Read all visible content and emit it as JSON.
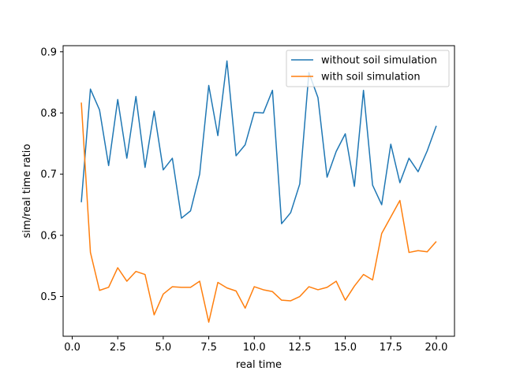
{
  "chart_data": {
    "type": "line",
    "xlabel": "real time",
    "ylabel": "sim/real time ratio",
    "xlim": [
      -0.5,
      21.0
    ],
    "ylim": [
      0.435,
      0.91
    ],
    "xticks": [
      0.0,
      2.5,
      5.0,
      7.5,
      10.0,
      12.5,
      15.0,
      17.5,
      20.0
    ],
    "xtick_labels": [
      "0.0",
      "2.5",
      "5.0",
      "7.5",
      "10.0",
      "12.5",
      "15.0",
      "17.5",
      "20.0"
    ],
    "yticks": [
      0.5,
      0.6,
      0.7,
      0.8,
      0.9
    ],
    "ytick_labels": [
      "0.5",
      "0.6",
      "0.7",
      "0.8",
      "0.9"
    ],
    "grid": false,
    "legend_position": "top-right",
    "x": [
      0.5,
      1.0,
      1.5,
      2.0,
      2.5,
      3.0,
      3.5,
      4.0,
      4.5,
      5.0,
      5.5,
      6.0,
      6.5,
      7.0,
      7.5,
      8.0,
      8.5,
      9.0,
      9.5,
      10.0,
      10.5,
      11.0,
      11.5,
      12.0,
      12.5,
      13.0,
      13.5,
      14.0,
      14.5,
      15.0,
      15.5,
      16.0,
      16.5,
      17.0,
      17.5,
      18.0,
      18.5,
      19.0,
      19.5,
      20.0
    ],
    "series": [
      {
        "name": "without soil simulation",
        "color": "#1f77b4",
        "values": [
          0.654,
          0.839,
          0.805,
          0.714,
          0.822,
          0.726,
          0.827,
          0.711,
          0.803,
          0.707,
          0.726,
          0.628,
          0.64,
          0.7,
          0.845,
          0.763,
          0.885,
          0.73,
          0.748,
          0.801,
          0.8,
          0.837,
          0.619,
          0.637,
          0.684,
          0.866,
          0.825,
          0.695,
          0.737,
          0.766,
          0.68,
          0.837,
          0.682,
          0.65,
          0.749,
          0.686,
          0.726,
          0.704,
          0.738,
          0.779
        ]
      },
      {
        "name": "with soil simulation",
        "color": "#ff7f0e",
        "values": [
          0.817,
          0.572,
          0.51,
          0.515,
          0.547,
          0.525,
          0.541,
          0.536,
          0.47,
          0.504,
          0.516,
          0.515,
          0.515,
          0.525,
          0.458,
          0.523,
          0.514,
          0.509,
          0.481,
          0.516,
          0.511,
          0.508,
          0.494,
          0.493,
          0.5,
          0.516,
          0.511,
          0.515,
          0.525,
          0.494,
          0.517,
          0.536,
          0.527,
          0.603,
          0.63,
          0.657,
          0.572,
          0.575,
          0.573,
          0.59
        ]
      }
    ]
  }
}
